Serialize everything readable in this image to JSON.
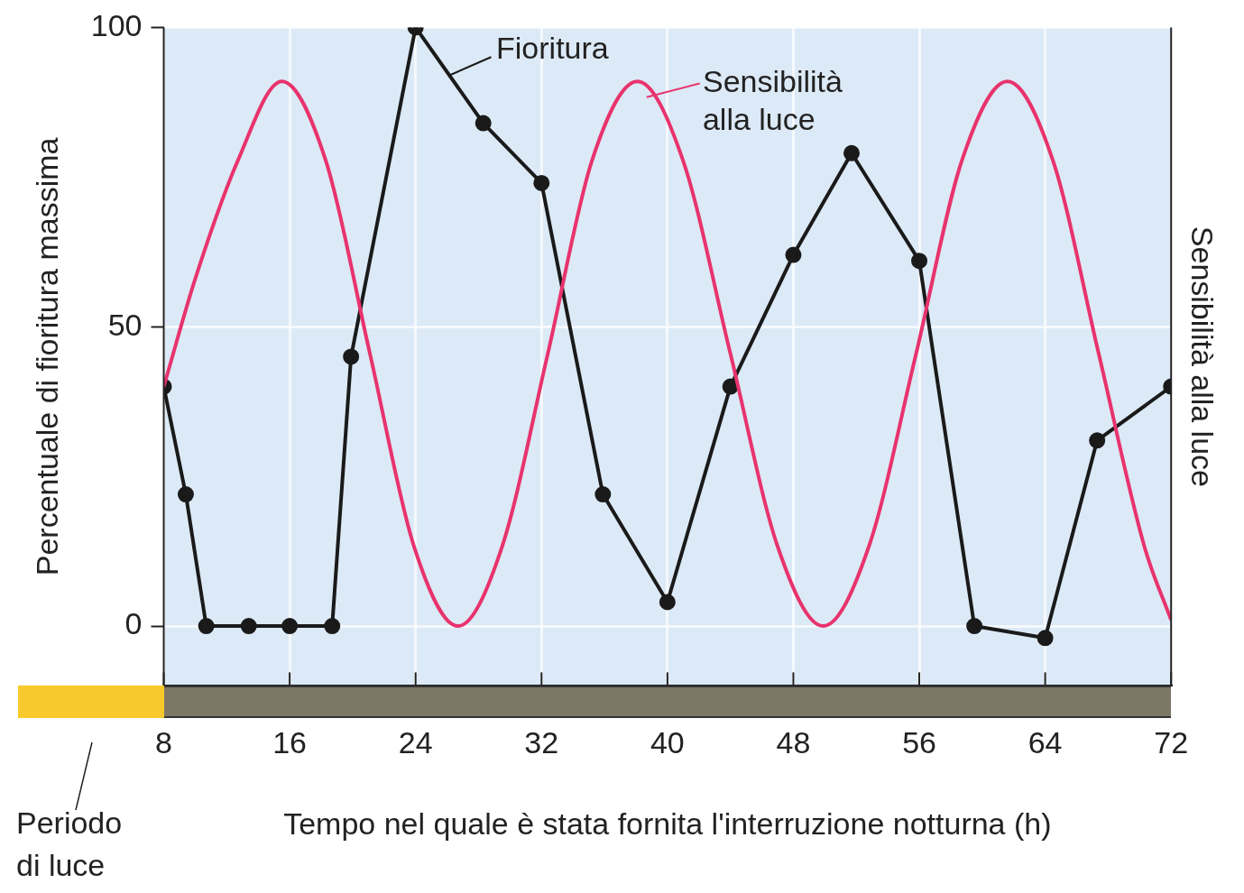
{
  "chart_data": {
    "type": "line",
    "xlabel": "Tempo nel quale è stata fornita l'interruzione notturna (h)",
    "ylabel": "Percentuale di fioritura massima",
    "y2label": "Sensibilità alla luce",
    "xlim": [
      8,
      72
    ],
    "xticks": [
      8,
      16,
      24,
      32,
      40,
      48,
      56,
      64,
      72
    ],
    "ylim": [
      -10,
      100
    ],
    "yticks": [
      0,
      50,
      100
    ],
    "grid": true,
    "legend": "top",
    "line_style": "solid",
    "annotations": [
      "Periodo di luce"
    ],
    "series": [
      {
        "name": "Sensibilità alla luce",
        "color": "#e8336d",
        "marker": "none",
        "x": [
          8,
          10,
          12.7,
          15.5,
          18.3,
          21.1,
          23.9,
          26.7,
          29.5,
          32.4,
          35.2,
          38.1,
          41.0,
          44.0,
          47.0,
          49.9,
          52.8,
          55.8,
          58.7,
          61.6,
          64.5,
          67.4,
          70.3,
          72
        ],
        "values": [
          40,
          58,
          77.7,
          91,
          77.7,
          45.5,
          13.3,
          0,
          13.3,
          45.5,
          77.7,
          91,
          77.7,
          45.5,
          13.3,
          0,
          13.3,
          45.5,
          77.7,
          91,
          77.7,
          45.5,
          13.3,
          1
        ]
      },
      {
        "name": "Fioritura",
        "color": "#1a1a1a",
        "marker": "circle",
        "x": [
          8,
          9.4,
          10.7,
          13.4,
          16,
          18.7,
          19.9,
          24,
          28.3,
          32,
          35.9,
          40,
          44,
          48,
          51.7,
          56,
          59.5,
          64,
          67.3,
          72
        ],
        "values": [
          40,
          22,
          0,
          0,
          0,
          0,
          45,
          100,
          84,
          74,
          22,
          4,
          40,
          62,
          79,
          61,
          0,
          -2,
          31,
          40
        ]
      }
    ]
  }
}
